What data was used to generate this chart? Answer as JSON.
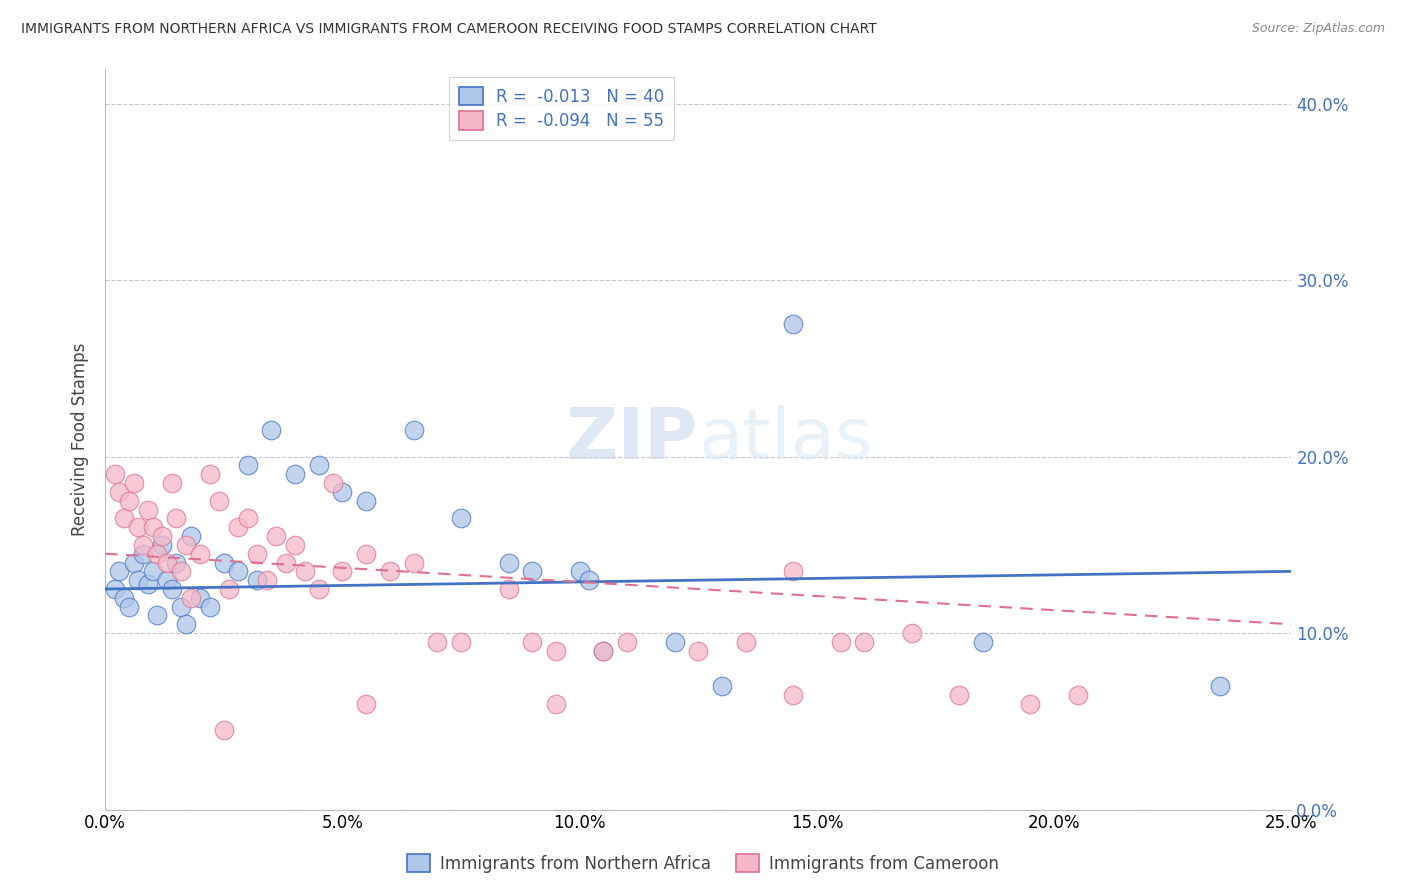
{
  "title": "IMMIGRANTS FROM NORTHERN AFRICA VS IMMIGRANTS FROM CAMEROON RECEIVING FOOD STAMPS CORRELATION CHART",
  "source": "Source: ZipAtlas.com",
  "ylabel": "Receiving Food Stamps",
  "xlim": [
    0.0,
    25.0
  ],
  "ylim": [
    0.0,
    42.0
  ],
  "yticks": [
    0.0,
    10.0,
    20.0,
    30.0,
    40.0
  ],
  "xticks": [
    0.0,
    5.0,
    10.0,
    15.0,
    20.0,
    25.0
  ],
  "color_blue": "#aec6e8",
  "color_pink": "#f4b8c8",
  "line_color_blue": "#4472c4",
  "line_color_pink": "#e07090",
  "watermark_text": "ZIPatlas",
  "blue_scatter": [
    [
      0.2,
      12.5
    ],
    [
      0.3,
      13.5
    ],
    [
      0.4,
      12.0
    ],
    [
      0.5,
      11.5
    ],
    [
      0.6,
      14.0
    ],
    [
      0.7,
      13.0
    ],
    [
      0.8,
      14.5
    ],
    [
      0.9,
      12.8
    ],
    [
      1.0,
      13.5
    ],
    [
      1.1,
      11.0
    ],
    [
      1.2,
      15.0
    ],
    [
      1.3,
      13.0
    ],
    [
      1.4,
      12.5
    ],
    [
      1.5,
      14.0
    ],
    [
      1.6,
      11.5
    ],
    [
      1.7,
      10.5
    ],
    [
      1.8,
      15.5
    ],
    [
      2.0,
      12.0
    ],
    [
      2.2,
      11.5
    ],
    [
      2.5,
      14.0
    ],
    [
      2.8,
      13.5
    ],
    [
      3.0,
      19.5
    ],
    [
      3.2,
      13.0
    ],
    [
      3.5,
      21.5
    ],
    [
      4.0,
      19.0
    ],
    [
      4.5,
      19.5
    ],
    [
      5.0,
      18.0
    ],
    [
      5.5,
      17.5
    ],
    [
      6.5,
      21.5
    ],
    [
      7.5,
      16.5
    ],
    [
      8.5,
      14.0
    ],
    [
      9.0,
      13.5
    ],
    [
      10.0,
      13.5
    ],
    [
      10.2,
      13.0
    ],
    [
      10.5,
      9.0
    ],
    [
      12.0,
      9.5
    ],
    [
      13.0,
      7.0
    ],
    [
      14.5,
      27.5
    ],
    [
      18.5,
      9.5
    ],
    [
      23.5,
      7.0
    ]
  ],
  "pink_scatter": [
    [
      0.2,
      19.0
    ],
    [
      0.3,
      18.0
    ],
    [
      0.4,
      16.5
    ],
    [
      0.5,
      17.5
    ],
    [
      0.6,
      18.5
    ],
    [
      0.7,
      16.0
    ],
    [
      0.8,
      15.0
    ],
    [
      0.9,
      17.0
    ],
    [
      1.0,
      16.0
    ],
    [
      1.1,
      14.5
    ],
    [
      1.2,
      15.5
    ],
    [
      1.3,
      14.0
    ],
    [
      1.4,
      18.5
    ],
    [
      1.5,
      16.5
    ],
    [
      1.6,
      13.5
    ],
    [
      1.7,
      15.0
    ],
    [
      1.8,
      12.0
    ],
    [
      2.0,
      14.5
    ],
    [
      2.2,
      19.0
    ],
    [
      2.4,
      17.5
    ],
    [
      2.6,
      12.5
    ],
    [
      2.8,
      16.0
    ],
    [
      3.0,
      16.5
    ],
    [
      3.2,
      14.5
    ],
    [
      3.4,
      13.0
    ],
    [
      3.6,
      15.5
    ],
    [
      3.8,
      14.0
    ],
    [
      4.0,
      15.0
    ],
    [
      4.2,
      13.5
    ],
    [
      4.5,
      12.5
    ],
    [
      4.8,
      18.5
    ],
    [
      5.0,
      13.5
    ],
    [
      5.5,
      14.5
    ],
    [
      6.0,
      13.5
    ],
    [
      6.5,
      14.0
    ],
    [
      7.0,
      9.5
    ],
    [
      7.5,
      9.5
    ],
    [
      8.5,
      12.5
    ],
    [
      9.0,
      9.5
    ],
    [
      9.5,
      9.0
    ],
    [
      10.5,
      9.0
    ],
    [
      11.0,
      9.5
    ],
    [
      12.5,
      9.0
    ],
    [
      13.5,
      9.5
    ],
    [
      14.5,
      13.5
    ],
    [
      15.5,
      9.5
    ],
    [
      16.0,
      9.5
    ],
    [
      17.0,
      10.0
    ],
    [
      18.0,
      6.5
    ],
    [
      19.5,
      6.0
    ],
    [
      2.5,
      4.5
    ],
    [
      5.5,
      6.0
    ],
    [
      9.5,
      6.0
    ],
    [
      14.5,
      6.5
    ],
    [
      20.5,
      6.5
    ]
  ]
}
